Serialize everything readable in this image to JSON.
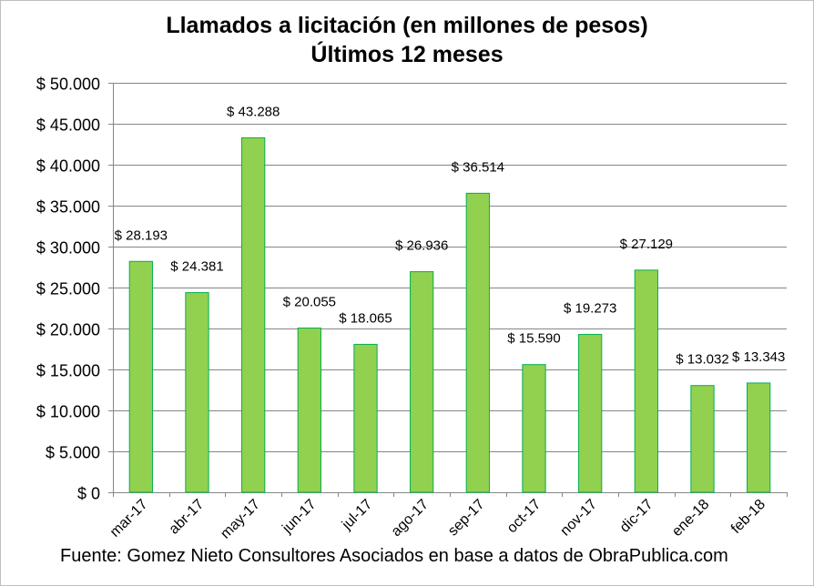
{
  "chart_data": {
    "type": "bar",
    "title": "Llamados a licitación (en millones de pesos)",
    "subtitle": "Últimos 12 meses",
    "categories": [
      "mar-17",
      "abr-17",
      "may-17",
      "jun-17",
      "jul-17",
      "ago-17",
      "sep-17",
      "oct-17",
      "nov-17",
      "dic-17",
      "ene-18",
      "feb-18"
    ],
    "values": [
      28193,
      24381,
      43288,
      20055,
      18065,
      26936,
      36514,
      15590,
      19273,
      27129,
      13032,
      13343
    ],
    "data_labels": [
      "$ 28.193",
      "$ 24.381",
      "$ 43.288",
      "$ 20.055",
      "$ 18.065",
      "$ 26.936",
      "$ 36.514",
      "$ 15.590",
      "$ 19.273",
      "$ 27.129",
      "$ 13.032",
      "$ 13.343"
    ],
    "y_ticks": [
      0,
      5000,
      10000,
      15000,
      20000,
      25000,
      30000,
      35000,
      40000,
      45000,
      50000
    ],
    "y_tick_labels": [
      "$ 0",
      "$ 5.000",
      "$ 10.000",
      "$ 15.000",
      "$ 20.000",
      "$ 25.000",
      "$ 30.000",
      "$ 35.000",
      "$ 40.000",
      "$ 45.000",
      "$ 50.000"
    ],
    "ylim": [
      0,
      50000
    ],
    "grid": true,
    "bar_color": "#92d050",
    "bar_edge_color": "#00b050",
    "source": "Fuente: Gomez Nieto Consultores Asociados en base a datos de ObraPublica.com"
  }
}
